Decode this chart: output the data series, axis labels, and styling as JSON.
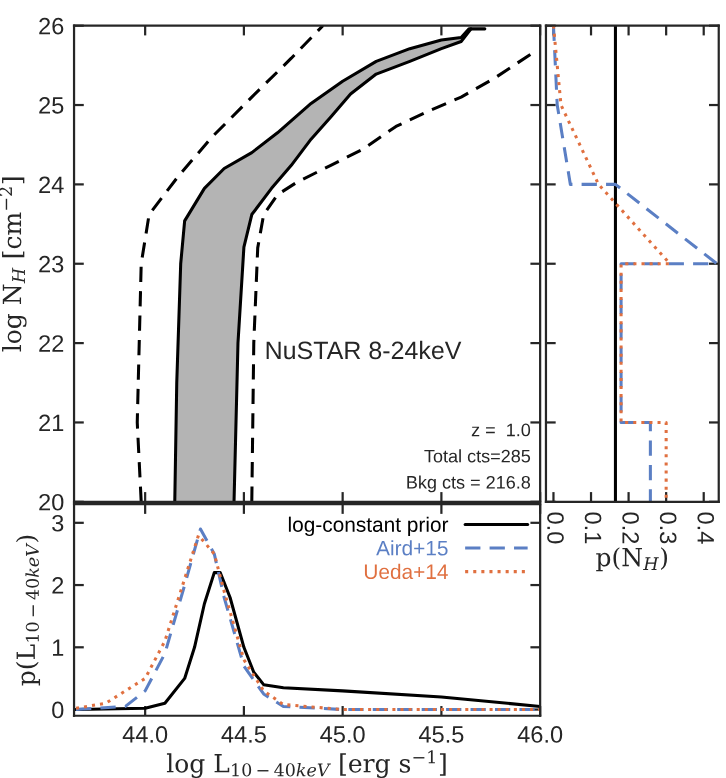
{
  "chart_data": [
    {
      "type": "line",
      "ylabel": "log N$_{H}$ [cm$^{−2}$]",
      "xlim": [
        43.64,
        46.0
      ],
      "ylim": [
        20,
        26
      ],
      "yticks": [
        20,
        21,
        22,
        23,
        24,
        25,
        26
      ],
      "xticks": [
        44.0,
        44.5,
        45.0,
        45.5,
        46.0
      ],
      "tick_labels": "y",
      "annotations": [
        "NuSTAR 8-24keV",
        "z =  1.0",
        "Total cts=285",
        "Bkg cts = 216.8"
      ],
      "series": [
        {
          "color": "#000000",
          "line_style": "solid",
          "x": [
            44.15,
            44.16,
            44.18,
            44.2,
            44.3,
            44.4,
            44.54,
            44.67,
            44.84,
            45.0,
            45.17,
            45.34,
            45.5,
            45.6,
            45.64,
            45.72
          ],
          "values": [
            20.0,
            21.5,
            23.0,
            23.54,
            23.95,
            24.2,
            24.4,
            24.65,
            25.02,
            25.3,
            25.55,
            25.71,
            25.82,
            25.85,
            25.96,
            25.96
          ]
        },
        {
          "color": "#000000",
          "line_style": "solid",
          "x": [
            44.45,
            44.47,
            44.5,
            44.54,
            44.64,
            44.74,
            44.84,
            44.94,
            45.04,
            45.17,
            45.34,
            45.5,
            45.6,
            45.65
          ],
          "values": [
            20.0,
            22.0,
            23.21,
            23.62,
            23.95,
            24.24,
            24.57,
            24.85,
            25.14,
            25.39,
            25.55,
            25.71,
            25.8,
            25.96
          ]
        },
        {
          "color": "#000000",
          "line_style": "dashed",
          "x": [
            43.98,
            43.96,
            43.97,
            43.98,
            44.02,
            44.17,
            44.34,
            44.54,
            44.74,
            44.9
          ],
          "values": [
            20.0,
            21.0,
            22.0,
            23.0,
            23.62,
            24.11,
            24.6,
            25.1,
            25.59,
            26.0
          ]
        },
        {
          "color": "#000000",
          "line_style": "dashed",
          "x": [
            44.54,
            44.55,
            44.57,
            44.6,
            44.67,
            44.77,
            44.94,
            45.1,
            45.27,
            45.44,
            45.6,
            45.77,
            45.97
          ],
          "values": [
            20.0,
            22.0,
            23.2,
            23.62,
            23.87,
            24.03,
            24.24,
            24.44,
            24.73,
            24.93,
            25.1,
            25.34,
            25.67
          ]
        }
      ]
    },
    {
      "type": "line",
      "xlabel": "p(N$_{H}$)",
      "xlim": [
        -0.02,
        0.44
      ],
      "xticks": [
        {
          "value": 0,
          "label": "0.0"
        },
        0.1,
        0.2,
        0.3,
        0.4
      ],
      "ylim": [
        20,
        26
      ],
      "yticks": [
        20,
        21,
        22,
        23,
        24,
        25,
        26
      ],
      "tick_labels": "x",
      "series": [
        {
          "color": "#000000",
          "line_style": "solid",
          "x": [
            0.165,
            0.165
          ],
          "values": [
            20.0,
            26.0
          ]
        },
        {
          "color": "#5b7fc4",
          "line_style": "dashed",
          "x": [
            0.0,
            0.01,
            0.045,
            0.165,
            0.435,
            0.18,
            0.18,
            0.258,
            0.258
          ],
          "values": [
            26.0,
            25.0,
            24.0,
            24.0,
            23.0,
            23.0,
            21.0,
            21.0,
            20.0
          ]
        },
        {
          "color": "#e07040",
          "line_style": "dotted",
          "x": [
            0.0,
            0.02,
            0.07,
            0.12,
            0.31,
            0.18,
            0.18,
            0.3,
            0.3
          ],
          "values": [
            26.0,
            25.0,
            24.5,
            24.0,
            23.0,
            23.0,
            21.0,
            21.0,
            20.0
          ]
        }
      ]
    },
    {
      "type": "line",
      "xlabel": "log L$_{10−40keV}$ [erg s$^{−1}$]",
      "ylabel": "p(L$_{10−40keV}$)",
      "xlim": [
        43.64,
        46.0
      ],
      "xticks": [
        {
          "value": 44.0,
          "label": "44.0"
        },
        44.5,
        {
          "value": 45.0,
          "label": "45.0"
        },
        45.5,
        {
          "value": 46.0,
          "label": "46.0"
        }
      ],
      "ylim": [
        -0.1,
        3.3
      ],
      "yticks": [
        0,
        1,
        2,
        3
      ],
      "legend": "top right",
      "series": [
        {
          "name": "log-constant prior",
          "color": "#000000",
          "line_style": "solid",
          "x": [
            43.65,
            44.0,
            44.1,
            44.2,
            44.25,
            44.3,
            44.35,
            44.38,
            44.43,
            44.5,
            44.55,
            44.6,
            44.7,
            45.0,
            45.5,
            46.0
          ],
          "values": [
            0.0,
            0.02,
            0.1,
            0.5,
            1.0,
            1.7,
            2.2,
            2.2,
            1.8,
            1.0,
            0.6,
            0.4,
            0.35,
            0.3,
            0.2,
            0.05
          ]
        },
        {
          "name": "Aird+15",
          "color": "#5b7fc4",
          "line_style": "dashed",
          "x": [
            43.65,
            43.9,
            44.0,
            44.1,
            44.2,
            44.28,
            44.35,
            44.4,
            44.5,
            44.6,
            44.7,
            45.0,
            46.0
          ],
          "values": [
            0.0,
            0.05,
            0.3,
            0.9,
            2.0,
            2.9,
            2.5,
            1.8,
            0.7,
            0.25,
            0.05,
            0.0,
            0.0
          ]
        },
        {
          "name": "Ueda+14",
          "color": "#e07040",
          "line_style": "dotted",
          "x": [
            43.65,
            43.8,
            44.0,
            44.1,
            44.2,
            44.27,
            44.35,
            44.4,
            44.5,
            44.6,
            44.7,
            45.0,
            46.0
          ],
          "values": [
            0.02,
            0.1,
            0.5,
            1.1,
            2.1,
            2.8,
            2.5,
            1.9,
            0.8,
            0.3,
            0.08,
            0.0,
            0.0
          ]
        }
      ]
    }
  ]
}
